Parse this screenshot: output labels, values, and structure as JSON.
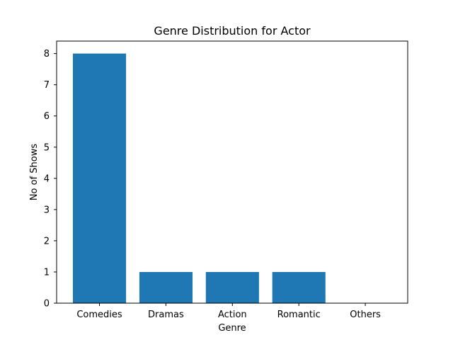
{
  "chart_data": {
    "type": "bar",
    "title": "Genre Distribution for Actor",
    "xlabel": "Genre",
    "ylabel": "No of Shows",
    "categories": [
      "Comedies",
      "Dramas",
      "Action",
      "Romantic",
      "Others"
    ],
    "values": [
      8,
      1,
      1,
      1,
      0
    ],
    "ylim": [
      0,
      8.4
    ],
    "yticks": [
      "0",
      "1",
      "2",
      "3",
      "4",
      "5",
      "6",
      "7",
      "8"
    ],
    "bar_color": "#1f77b4",
    "grid": false,
    "legend": "none"
  }
}
